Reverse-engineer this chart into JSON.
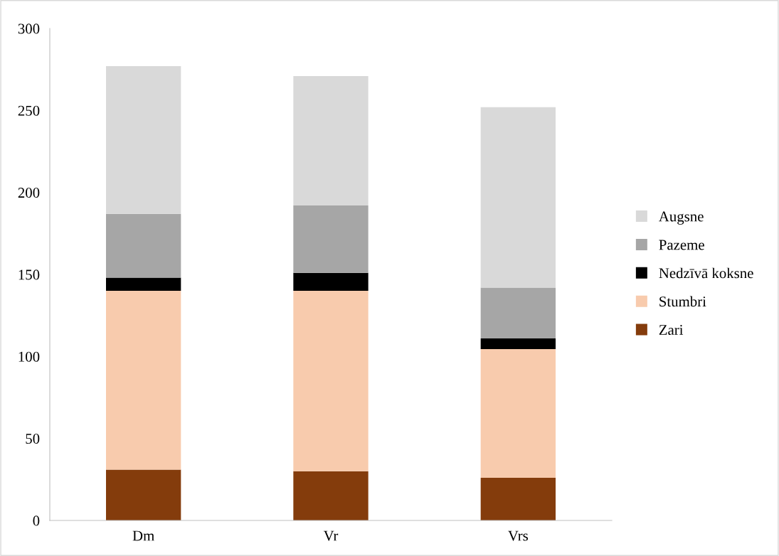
{
  "chart_data": {
    "type": "bar",
    "stacked": true,
    "categories": [
      "Dm",
      "Vr",
      "Vrs"
    ],
    "series": [
      {
        "name": "Zari",
        "color": "#843c0c",
        "values": [
          31,
          30,
          26
        ]
      },
      {
        "name": "Stumbri",
        "color": "#f8cbad",
        "values": [
          109,
          110,
          78.5
        ]
      },
      {
        "name": "Nedzīvā koksne",
        "color": "#000000",
        "values": [
          8,
          11,
          6.5
        ]
      },
      {
        "name": "Pazeme",
        "color": "#a6a6a6",
        "values": [
          39,
          41,
          31
        ]
      },
      {
        "name": "Augsne",
        "color": "#d9d9d9",
        "values": [
          90,
          79,
          110
        ]
      }
    ],
    "ylim": [
      0,
      300
    ],
    "yticks": [
      0,
      50,
      100,
      150,
      200,
      250,
      300
    ],
    "grid": false,
    "legend": "right"
  }
}
